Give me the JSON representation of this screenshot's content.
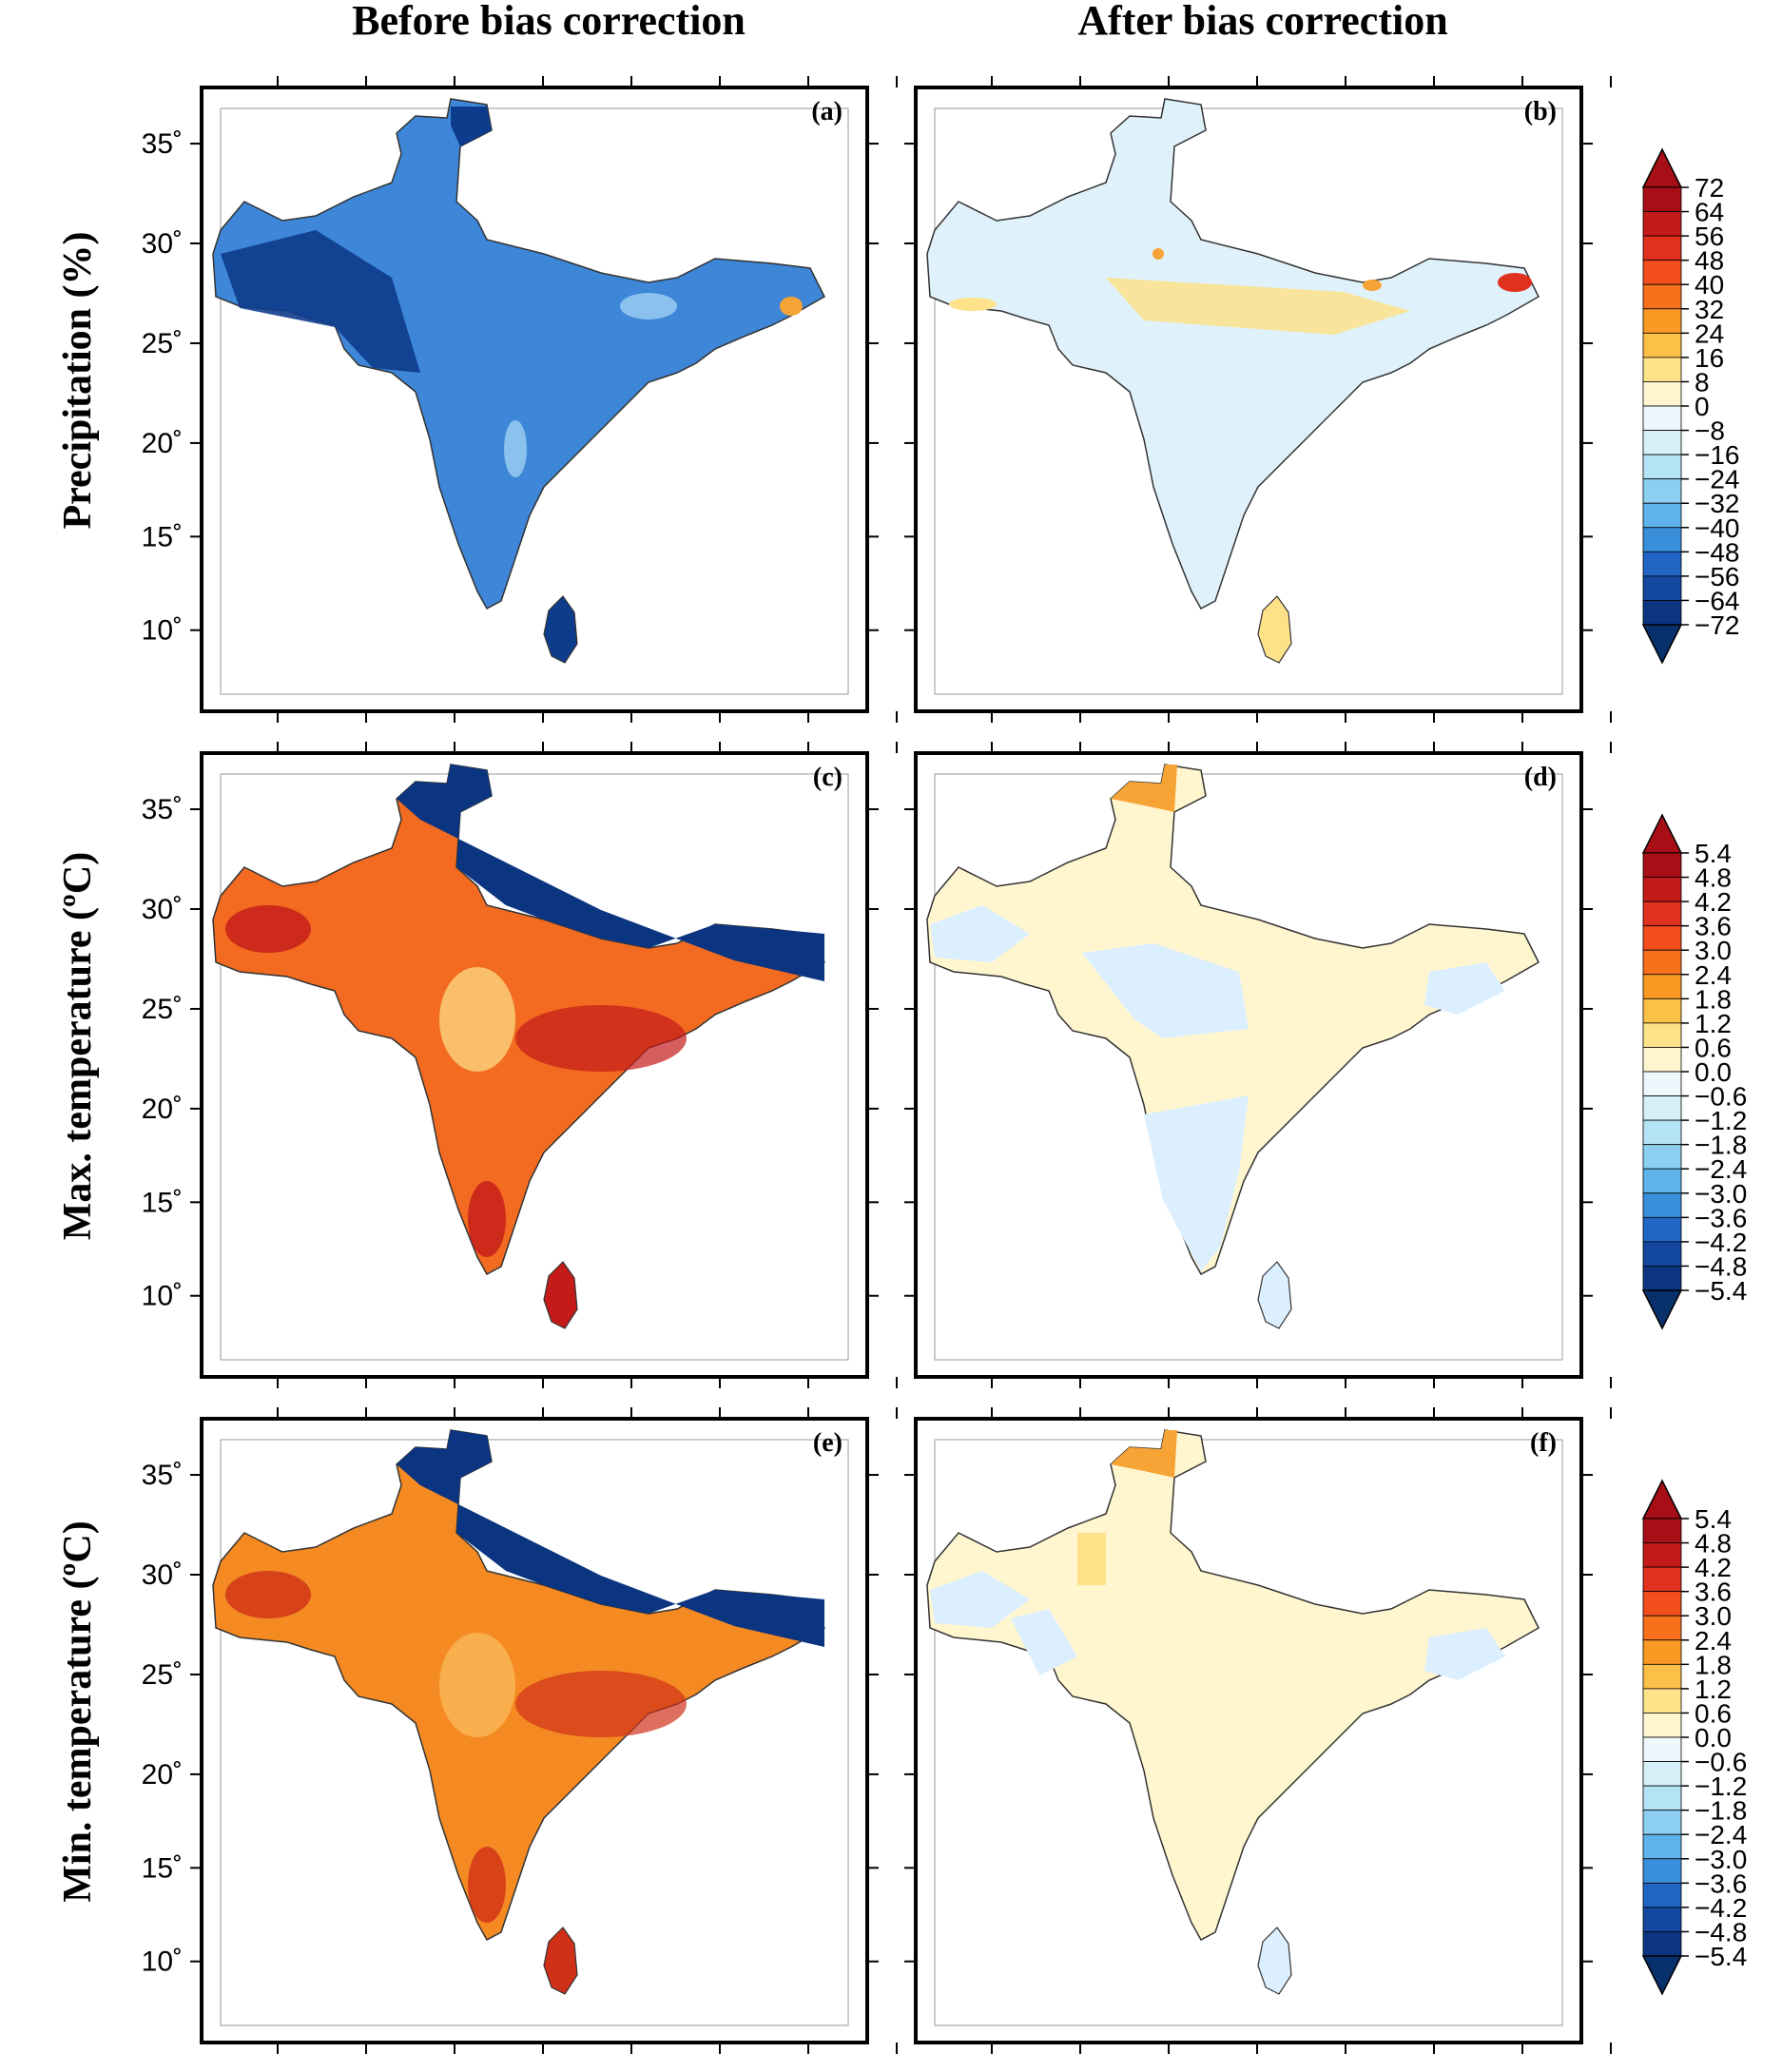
{
  "column_titles": [
    "Before bias correction",
    "After bias correction"
  ],
  "row_titles": [
    "Precipitation (%)",
    "Max. temperature (ºC)",
    "Min. temperature (ºC)"
  ],
  "panel_labels": [
    "(a)",
    "(b)",
    "(c)",
    "(d)",
    "(e)",
    "(f)"
  ],
  "latitude_ticks": [
    "35˚",
    "30˚",
    "25˚",
    "20˚",
    "15˚",
    "10˚"
  ],
  "colorbars": [
    {
      "row": 0,
      "labels": [
        "72",
        "64",
        "56",
        "48",
        "40",
        "32",
        "24",
        "16",
        "8",
        "0",
        "−8",
        "−16",
        "−24",
        "−32",
        "−40",
        "−48",
        "−56",
        "−64",
        "−72"
      ]
    },
    {
      "row": 1,
      "labels": [
        "5.4",
        "4.8",
        "4.2",
        "3.6",
        "3.0",
        "2.4",
        "1.8",
        "1.2",
        "0.6",
        "0.0",
        "−0.6",
        "−1.2",
        "−1.8",
        "−2.4",
        "−3.0",
        "−3.6",
        "−4.2",
        "−4.8",
        "−5.4"
      ]
    },
    {
      "row": 2,
      "labels": [
        "5.4",
        "4.8",
        "4.2",
        "3.6",
        "3.0",
        "2.4",
        "1.8",
        "1.2",
        "0.6",
        "0.0",
        "−0.6",
        "−1.2",
        "−1.8",
        "−2.4",
        "−3.0",
        "−3.6",
        "−4.2",
        "−4.8",
        "−5.4"
      ]
    }
  ],
  "palette": {
    "over": "#a50f15",
    "under": "#08306b",
    "bands": [
      "#a50f15",
      "#c41a1a",
      "#e0301e",
      "#f24d1c",
      "#f7711d",
      "#fa9a25",
      "#fcbf47",
      "#fde28a",
      "#fff6cf",
      "#eef7fb",
      "#d6f0f8",
      "#b4e3f5",
      "#8ccff0",
      "#5eb4ea",
      "#3a8fdb",
      "#2166c4",
      "#1347a0",
      "#0b3580"
    ]
  },
  "panels": [
    {
      "id": "a",
      "row": 0,
      "col": 0,
      "fill": "#3d86d8",
      "accents": [
        "#0d3c8c",
        "#9fd0f3",
        "#f7a436"
      ]
    },
    {
      "id": "b",
      "row": 0,
      "col": 1,
      "fill": "#dff2fb",
      "accents": [
        "#fde28a",
        "#f7a436",
        "#e0301e"
      ]
    },
    {
      "id": "c",
      "row": 1,
      "col": 0,
      "fill": "#f26b20",
      "accents": [
        "#c41a1a",
        "#fde28a",
        "#0b3580"
      ]
    },
    {
      "id": "d",
      "row": 1,
      "col": 1,
      "fill": "#fff6cf",
      "accents": [
        "#dcefff",
        "#f7a436"
      ]
    },
    {
      "id": "e",
      "row": 2,
      "col": 0,
      "fill": "#f58a22",
      "accents": [
        "#d03018",
        "#fbbf60",
        "#0b3580"
      ]
    },
    {
      "id": "f",
      "row": 2,
      "col": 1,
      "fill": "#fff6cf",
      "accents": [
        "#dcefff",
        "#f7a436",
        "#fde28a"
      ]
    }
  ]
}
